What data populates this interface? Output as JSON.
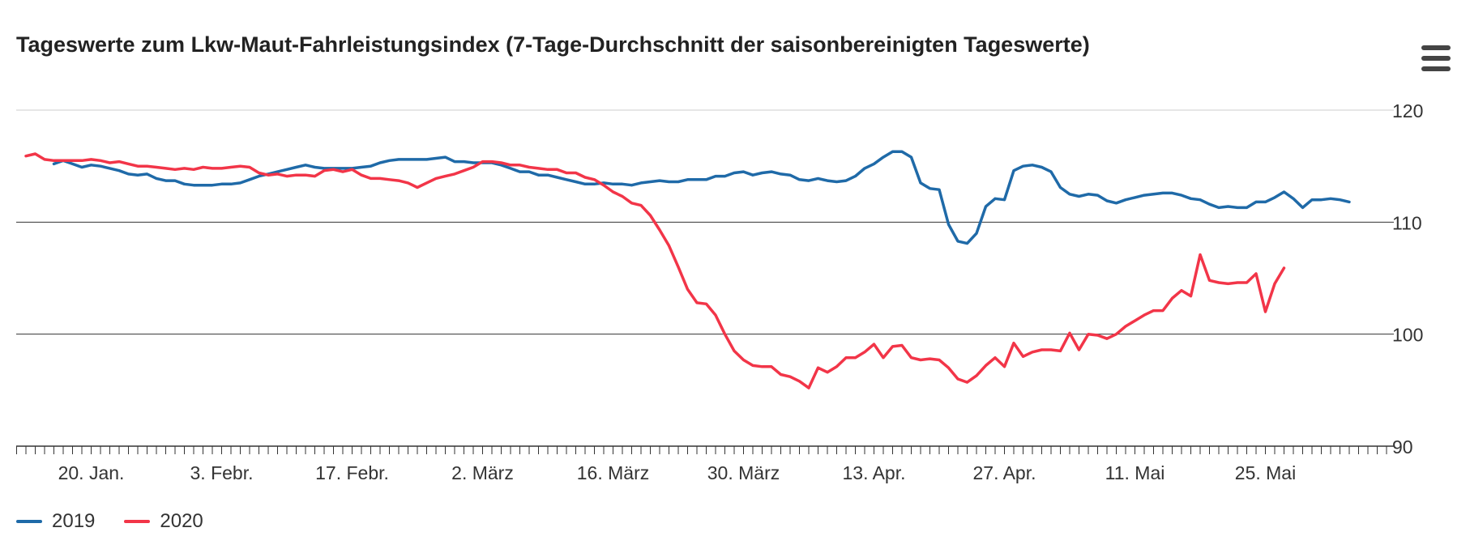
{
  "title": "Tageswerte zum Lkw-Maut-Fahrleistungsindex (7-Tage-Durchschnitt der saisonbereinigten Tageswerte)",
  "menu_icon": "hamburger-menu-icon",
  "colors": {
    "2019": "#1f6aa8",
    "2020": "#f23548",
    "grid_major": "#333333",
    "grid_minor": "#dddddd",
    "text": "#333333"
  },
  "chart_data": {
    "type": "line",
    "x_start": "2020-01-13",
    "x_ticks": [
      "20. Jan.",
      "3. Febr.",
      "17. Febr.",
      "2. März",
      "16. März",
      "30. März",
      "13. Apr.",
      "27. Apr.",
      "11. Mai",
      "25. Mai"
    ],
    "ylim": [
      90,
      120
    ],
    "y_ticks": [
      90,
      100,
      110,
      120
    ],
    "grid": true,
    "legend_position": "bottom-left",
    "series": [
      {
        "name": "2019",
        "values": [
          115.2,
          115.5,
          115.2,
          114.9,
          115.1,
          115.0,
          114.8,
          114.6,
          114.3,
          114.2,
          114.3,
          113.9,
          113.7,
          113.7,
          113.4,
          113.3,
          113.3,
          113.3,
          113.4,
          113.4,
          113.5,
          113.8,
          114.1,
          114.3,
          114.5,
          114.7,
          114.9,
          115.1,
          114.9,
          114.8,
          114.8,
          114.8,
          114.8,
          114.9,
          115.0,
          115.3,
          115.5,
          115.6,
          115.6,
          115.6,
          115.6,
          115.7,
          115.8,
          115.4,
          115.4,
          115.3,
          115.3,
          115.3,
          115.1,
          114.8,
          114.5,
          114.5,
          114.2,
          114.2,
          114.0,
          113.8,
          113.6,
          113.4,
          113.4,
          113.5,
          113.4,
          113.4,
          113.3,
          113.5,
          113.6,
          113.7,
          113.6,
          113.6,
          113.8,
          113.8,
          113.8,
          114.1,
          114.1,
          114.4,
          114.5,
          114.2,
          114.4,
          114.5,
          114.3,
          114.2,
          113.8,
          113.7,
          113.9,
          113.7,
          113.6,
          113.7,
          114.1,
          114.8,
          115.2,
          115.8,
          116.3,
          116.3,
          115.8,
          113.5,
          113.0,
          112.9,
          109.8,
          108.3,
          108.1,
          109.0,
          111.4,
          112.1,
          112.0,
          114.6,
          115.0,
          115.1,
          114.9,
          114.5,
          113.1,
          112.5,
          112.3,
          112.5,
          112.4,
          111.9,
          111.7,
          112.0,
          112.2,
          112.4,
          112.5,
          112.6,
          112.6,
          112.4,
          112.1,
          112.0,
          111.6,
          111.3,
          111.4,
          111.3,
          111.3,
          111.8,
          111.8,
          112.2,
          112.7,
          112.1,
          111.3,
          112.0,
          112.0,
          112.1,
          112.0,
          111.8
        ],
        "start_index": 3
      },
      {
        "name": "2020",
        "values": [
          115.9,
          116.1,
          115.6,
          115.5,
          115.5,
          115.5,
          115.5,
          115.6,
          115.5,
          115.3,
          115.4,
          115.2,
          115.0,
          115.0,
          114.9,
          114.8,
          114.7,
          114.8,
          114.7,
          114.9,
          114.8,
          114.8,
          114.9,
          115.0,
          114.9,
          114.4,
          114.2,
          114.3,
          114.1,
          114.2,
          114.2,
          114.1,
          114.6,
          114.7,
          114.5,
          114.7,
          114.2,
          113.9,
          113.9,
          113.8,
          113.7,
          113.5,
          113.1,
          113.5,
          113.9,
          114.1,
          114.3,
          114.6,
          114.9,
          115.4,
          115.4,
          115.3,
          115.1,
          115.1,
          114.9,
          114.8,
          114.7,
          114.7,
          114.4,
          114.4,
          114.0,
          113.8,
          113.3,
          112.7,
          112.3,
          111.7,
          111.5,
          110.6,
          109.3,
          107.9,
          106.0,
          104.0,
          102.8,
          102.7,
          101.7,
          100.0,
          98.5,
          97.7,
          97.2,
          97.1,
          97.1,
          96.4,
          96.2,
          95.8,
          95.2,
          97.0,
          96.6,
          97.1,
          97.9,
          97.9,
          98.4,
          99.1,
          97.9,
          98.9,
          99.0,
          97.9,
          97.7,
          97.8,
          97.7,
          97.0,
          96.0,
          95.7,
          96.3,
          97.2,
          97.9,
          97.1,
          99.2,
          98.0,
          98.4,
          98.6,
          98.6,
          98.5,
          100.1,
          98.6,
          100.0,
          99.9,
          99.6,
          100.0,
          100.7,
          101.2,
          101.7,
          102.1,
          102.1,
          103.2,
          103.9,
          103.4,
          107.1,
          104.8,
          104.6,
          104.5,
          104.6,
          104.6,
          105.4,
          102.0,
          104.5,
          105.9
        ],
        "start_index": 0
      }
    ]
  }
}
